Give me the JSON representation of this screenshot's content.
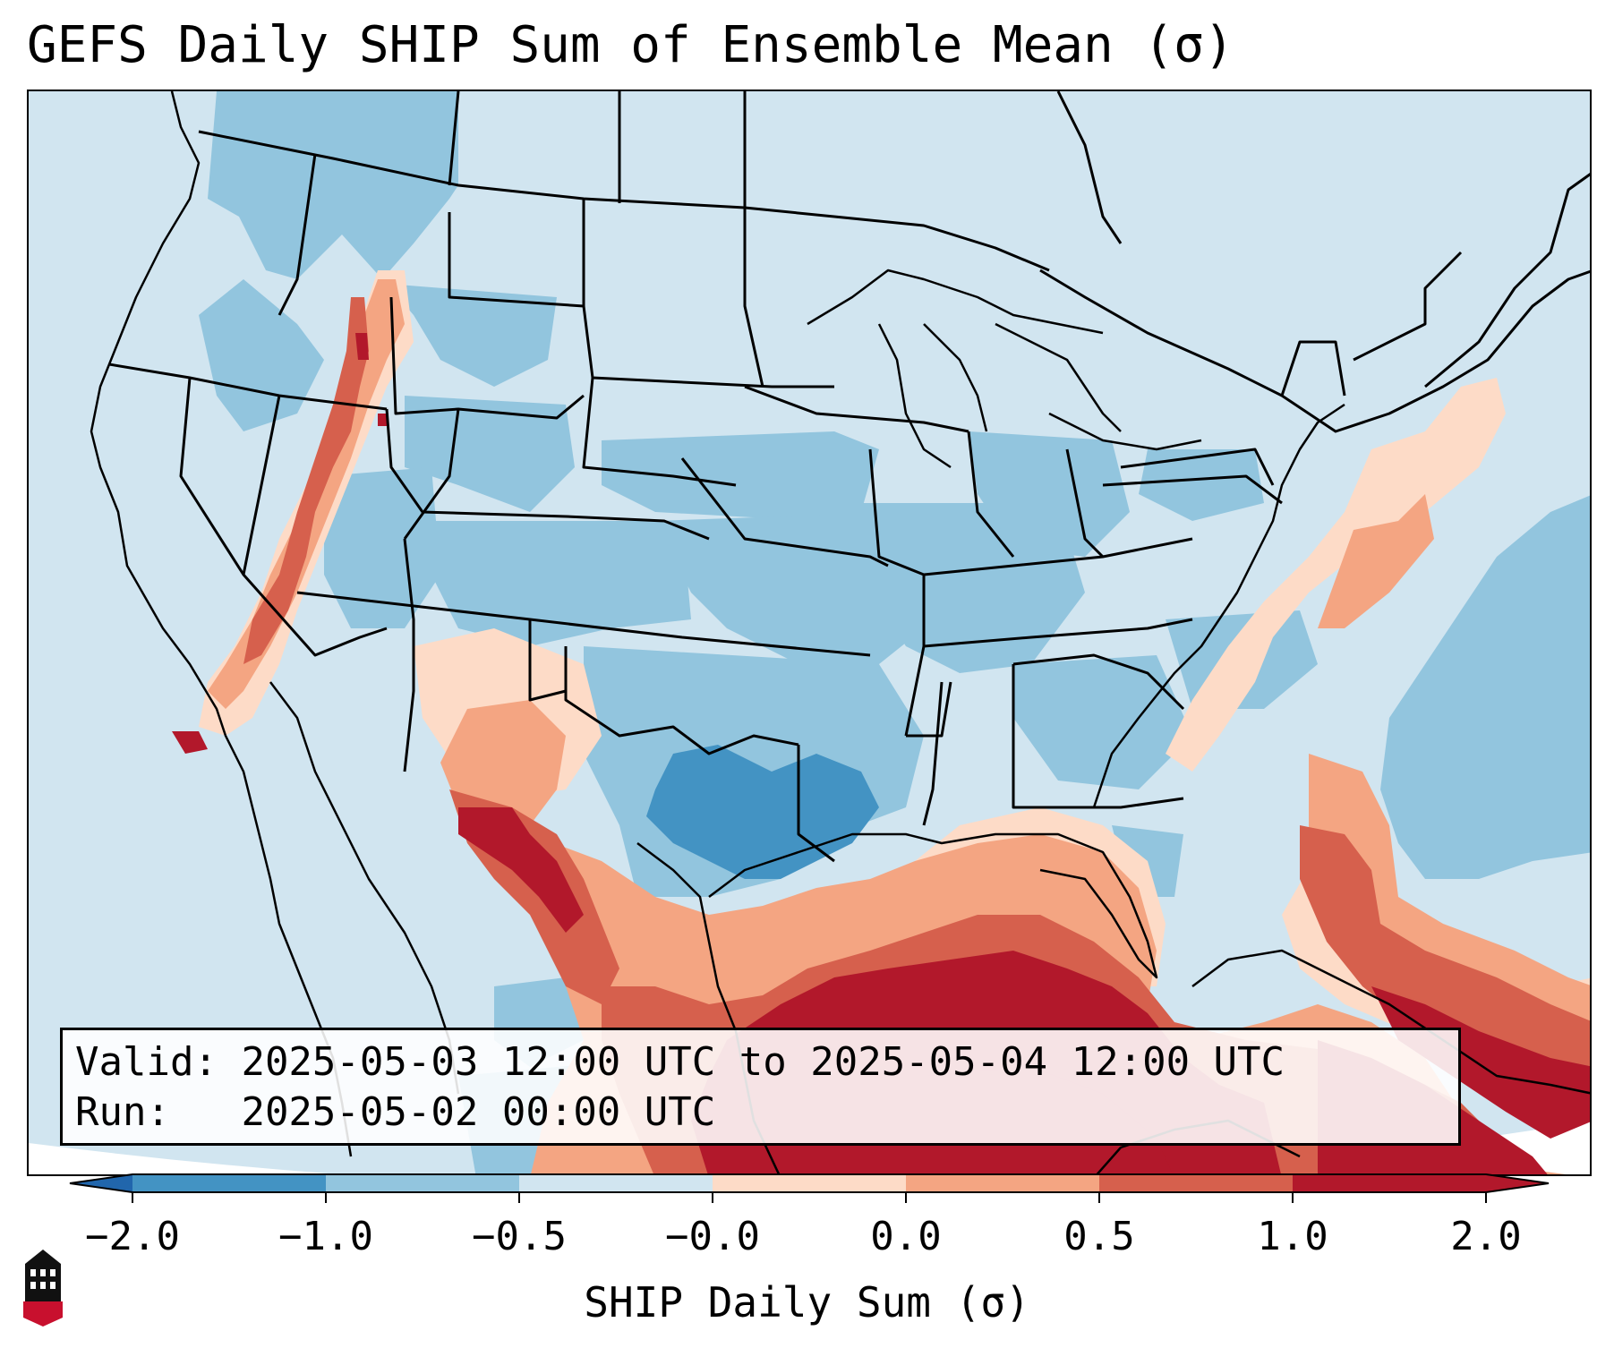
{
  "title": "GEFS Daily SHIP Sum of Ensemble Mean (σ)",
  "info": {
    "valid_label": "Valid:",
    "valid_value": "2025-05-03 12:00 UTC to 2025-05-04 12:00 UTC",
    "run_label": "Run:",
    "run_value": "2025-05-02 00:00 UTC"
  },
  "colorbar": {
    "label": "SHIP Daily Sum (σ)",
    "ticks": [
      "−2.0",
      "−1.0",
      "−0.5",
      "−0.0",
      "0.0",
      "0.5",
      "1.0",
      "2.0"
    ],
    "colors": [
      "#2166ac",
      "#4393c3",
      "#92c5de",
      "#d1e5f0",
      "#fddbc7",
      "#f4a582",
      "#d6604d",
      "#b2182b"
    ],
    "extend": "both"
  },
  "logo": {
    "name": "niu-logo",
    "text": "NIU"
  },
  "colors": {
    "ocean_fill": "#d1e5f0",
    "background": "#ffffff",
    "border_lines": "#000000"
  }
}
